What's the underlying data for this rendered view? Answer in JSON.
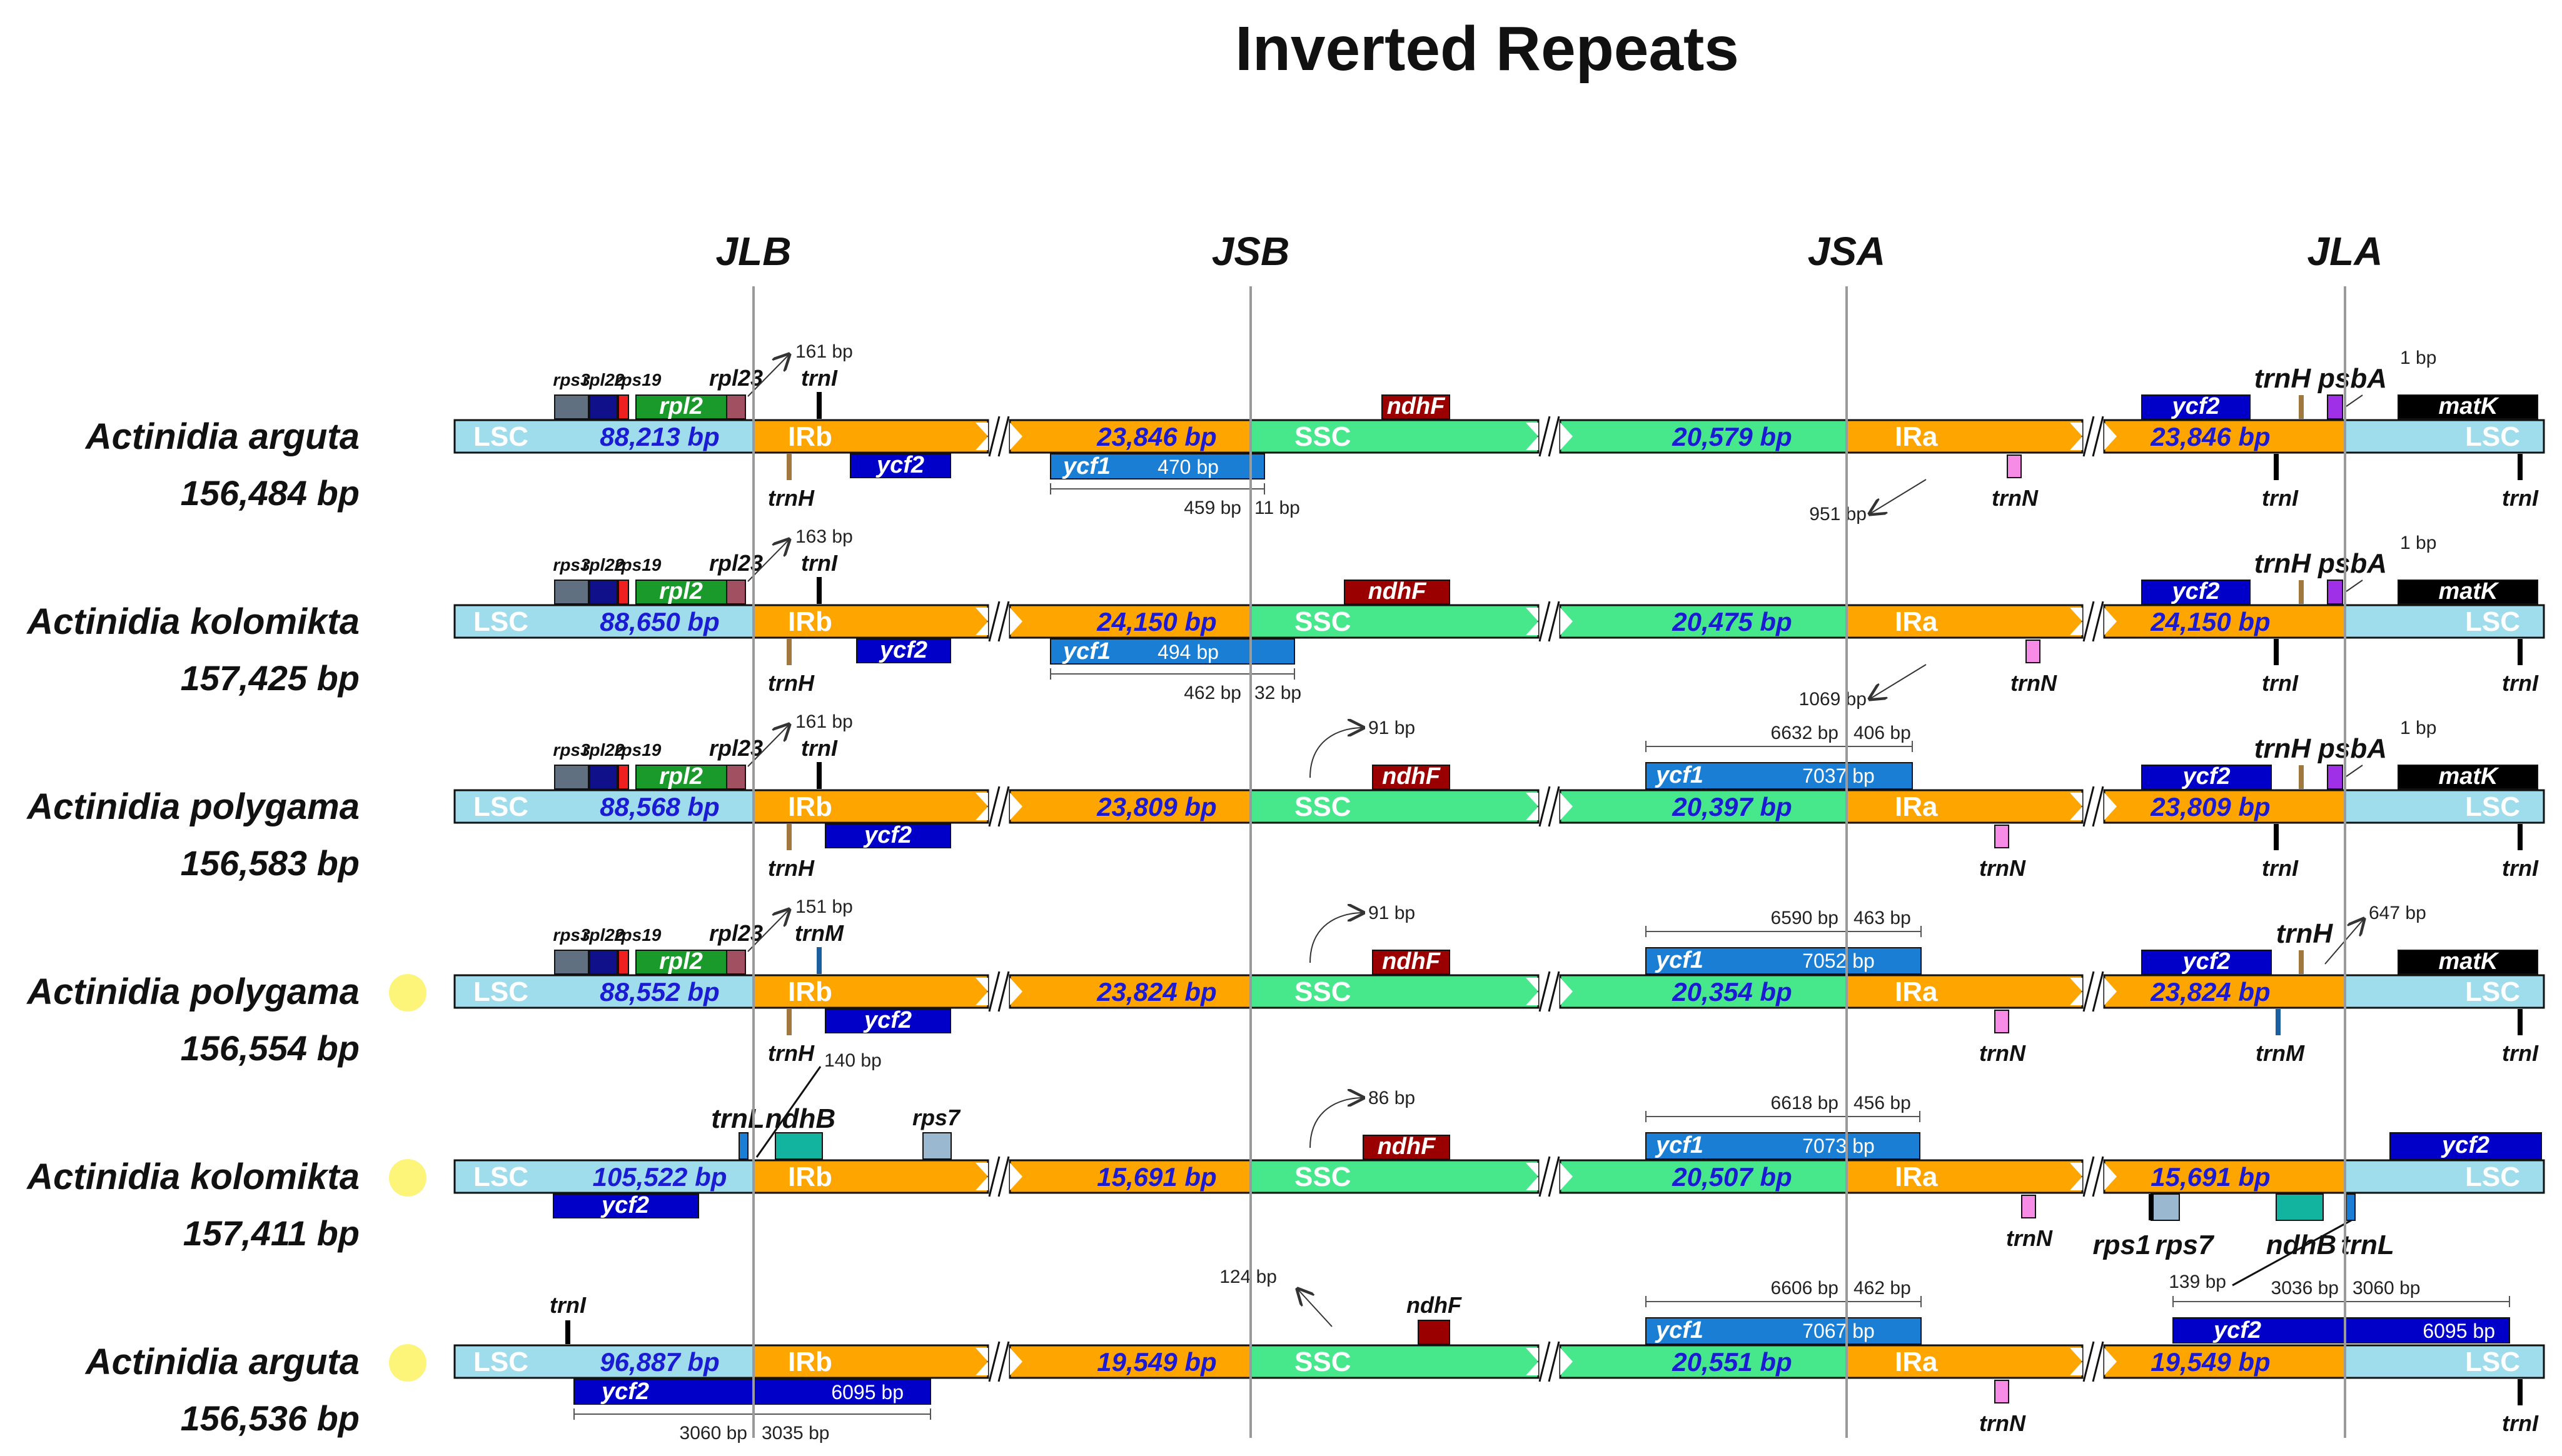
{
  "title": "Inverted Repeats",
  "junctions": [
    "JLB",
    "JSB",
    "JSA",
    "JLA"
  ],
  "colors": {
    "lsc": "#9fdcec",
    "ir": "#ffa500",
    "ssc": "#47e88c",
    "blue": "#0000c8",
    "lightblue": "#1a7fd4",
    "darkred": "#9b0000",
    "black": "#000000",
    "brown": "#a07840",
    "pink": "#f78ce6",
    "purple": "#a030e8",
    "teal": "#12b4a0",
    "green": "#1a9a2a",
    "slate": "#607080",
    "navy": "#10108a",
    "red": "#ee2020",
    "maroon": "#a05060",
    "greyblue": "#9ab8d0",
    "marker": "#fdf57a"
  },
  "regions": {
    "lsc": "LSC",
    "irb": "IRb",
    "ssc": "SSC",
    "ira": "IRa"
  },
  "rows": [
    {
      "species": "Actinidia arguta",
      "total": "156,484 bp",
      "marked": false,
      "lsc": "88,213 bp",
      "ir": "23,846 bp",
      "ssc": "20,579 bp",
      "labels": {
        "rps3": "rps3",
        "rpl22": "rpl22",
        "rps19": "rps19",
        "rpl23": "rpl23",
        "rpl2": "rpl2",
        "jlb_top": "trnI",
        "jlb_bp": "161 bp",
        "ycf2_b": "ycf2",
        "trnH_b": "trnH",
        "ndhF": "ndhF",
        "ycf1": "ycf1",
        "ycf1_bp": "470 bp",
        "jsb_l": "459 bp",
        "jsb_r": "11 bp",
        "jsa_bp": "951 bp",
        "trnN": "trnN",
        "ycf2_a": "ycf2",
        "trnH_a": "trnH",
        "psbA": "psbA",
        "jla_bp": "1 bp",
        "matK": "matK",
        "trnI_a": "trnI",
        "trnI_e": "trnI"
      }
    },
    {
      "species": "Actinidia kolomikta",
      "total": "157,425 bp",
      "marked": false,
      "lsc": "88,650 bp",
      "ir": "24,150 bp",
      "ssc": "20,475 bp",
      "labels": {
        "rps3": "rps3",
        "rpl22": "rpl22",
        "rps19": "rps19",
        "rpl23": "rpl23",
        "rpl2": "rpl2",
        "jlb_top": "trnI",
        "jlb_bp": "163 bp",
        "ycf2_b": "ycf2",
        "trnH_b": "trnH",
        "ndhF": "ndhF",
        "ycf1": "ycf1",
        "ycf1_bp": "494 bp",
        "jsb_l": "462 bp",
        "jsb_r": "32 bp",
        "jsa_bp": "1069 bp",
        "trnN": "trnN",
        "ycf2_a": "ycf2",
        "trnH_a": "trnH",
        "psbA": "psbA",
        "jla_bp": "1 bp",
        "matK": "matK",
        "trnI_a": "trnI",
        "trnI_e": "trnI"
      }
    },
    {
      "species": "Actinidia polygama",
      "total": "156,583 bp",
      "marked": false,
      "lsc": "88,568 bp",
      "ir": "23,809 bp",
      "ssc": "20,397 bp",
      "labels": {
        "rps3": "rps3",
        "rpl22": "rpl22",
        "rps19": "rps19",
        "rpl23": "rpl23",
        "rpl2": "rpl2",
        "jlb_top": "trnI",
        "jlb_bp": "161 bp",
        "ycf2_b": "ycf2",
        "trnH_b": "trnH",
        "ndhF": "ndhF",
        "ndhF_bp": "91 bp",
        "ycf1": "ycf1",
        "ycf1_bp": "7037 bp",
        "jsa_l": "6632 bp",
        "jsa_r": "406 bp",
        "trnN": "trnN",
        "ycf2_a": "ycf2",
        "trnH_a": "trnH",
        "psbA": "psbA",
        "jla_bp": "1 bp",
        "matK": "matK",
        "trnI_a": "trnI",
        "trnI_e": "trnI"
      }
    },
    {
      "species": "Actinidia polygama",
      "total": "156,554 bp",
      "marked": true,
      "lsc": "88,552 bp",
      "ir": "23,824 bp",
      "ssc": "20,354 bp",
      "labels": {
        "rps3": "rps3",
        "rpl22": "rpl22",
        "rps19": "rps19",
        "rpl23": "rpl23",
        "rpl2": "rpl2",
        "jlb_top": "trnM",
        "jlb_bp": "151 bp",
        "ycf2_b": "ycf2",
        "trnH_b": "trnH",
        "ndhF": "ndhF",
        "ndhF_bp": "91 bp",
        "ycf1": "ycf1",
        "ycf1_bp": "7052 bp",
        "jsa_l": "6590 bp",
        "jsa_r": "463 bp",
        "trnN": "trnN",
        "ycf2_a": "ycf2",
        "trnH_a": "trnH",
        "jla_bp": "647 bp",
        "matK": "matK",
        "trnM_a": "trnM",
        "trnI_e": "trnI"
      }
    },
    {
      "species": "Actinidia kolomikta",
      "total": "157,411 bp",
      "marked": true,
      "lsc": "105,522 bp",
      "ir": "15,691 bp",
      "ssc": "20,507 bp",
      "labels": {
        "trnL_b": "trnL",
        "ndhB_b": "ndhB",
        "jlb_bp": "140 bp",
        "rps7_b": "rps7",
        "ycf2_b": "ycf2",
        "ndhF": "ndhF",
        "ndhF_bp": "86 bp",
        "ycf1": "ycf1",
        "ycf1_bp": "7073 bp",
        "jsa_l": "6618 bp",
        "jsa_r": "456 bp",
        "trnN": "trnN",
        "rps1": "rps1",
        "rps7_a": "rps7",
        "ndhB_a": "ndhB",
        "trnL_a": "trnL",
        "jla_bp": "139 bp",
        "ycf2_a": "ycf2"
      }
    },
    {
      "species": "Actinidia arguta",
      "total": "156,536 bp",
      "marked": true,
      "lsc": "96,887 bp",
      "ir": "19,549 bp",
      "ssc": "20,551 bp",
      "labels": {
        "trnI_b": "trnI",
        "ycf2_b": "ycf2",
        "ycf2_b_bp": "6095 bp",
        "jlb_l": "3060 bp",
        "jlb_r": "3035 bp",
        "ndhF": "ndhF",
        "ndhF_bp": "124 bp",
        "ycf1": "ycf1",
        "ycf1_bp": "7067 bp",
        "jsa_l": "6606 bp",
        "jsa_r": "462 bp",
        "trnN": "trnN",
        "ycf2_a": "ycf2",
        "ycf2_a_bp": "6095 bp",
        "jla_l": "3036 bp",
        "jla_r": "3060 bp",
        "trnI_e": "trnI"
      }
    }
  ]
}
